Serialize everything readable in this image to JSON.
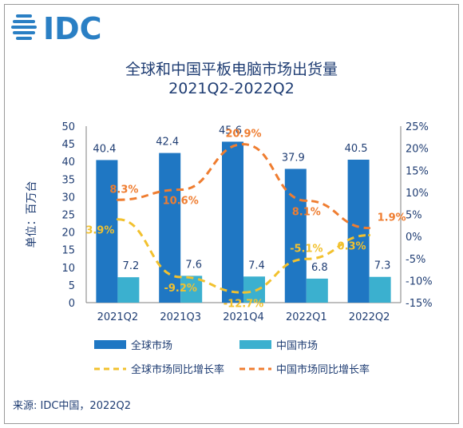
{
  "logo": {
    "text": "IDC",
    "color": "#2a7fc4"
  },
  "chart_data": {
    "type": "bar",
    "title": "全球和中国平板电脑市场出货量",
    "subtitle": "2021Q2-2022Q2",
    "ylabel": "单位：百万台",
    "categories": [
      "2021Q2",
      "2021Q3",
      "2021Q4",
      "2022Q1",
      "2022Q2"
    ],
    "ylim": [
      0,
      50
    ],
    "yticks": [
      "0",
      "5",
      "10",
      "15",
      "20",
      "25",
      "30",
      "35",
      "40",
      "45",
      "50"
    ],
    "y2lim": [
      -15,
      25
    ],
    "y2ticks": [
      "-15%",
      "-10%",
      "-5%",
      "0%",
      "5%",
      "10%",
      "15%",
      "20%",
      "25%"
    ],
    "series": [
      {
        "name": "全球市场",
        "kind": "bar",
        "color": "#1f77c3",
        "values": [
          40.4,
          42.4,
          45.6,
          37.9,
          40.5
        ],
        "labels": [
          "40.4",
          "42.4",
          "45.6",
          "37.9",
          "40.5"
        ]
      },
      {
        "name": "中国市场",
        "kind": "bar",
        "color": "#3bb0cf",
        "values": [
          7.2,
          7.6,
          7.4,
          6.8,
          7.3
        ],
        "labels": [
          "7.2",
          "7.6",
          "7.4",
          "6.8",
          "7.3"
        ]
      },
      {
        "name": "全球市场同比增长率",
        "kind": "line",
        "axis": "right",
        "style": "dashed",
        "color": "#f2c12e",
        "values": [
          3.9,
          -9.2,
          -12.7,
          -5.1,
          0.3
        ],
        "labels": [
          "3.9%",
          "-9.2%",
          "-12.7%",
          "-5.1%",
          "0.3%"
        ]
      },
      {
        "name": "中国市场同比增长率",
        "kind": "line",
        "axis": "right",
        "style": "dashed",
        "color": "#ef7d30",
        "values": [
          8.3,
          10.6,
          20.9,
          8.1,
          1.9
        ],
        "labels": [
          "8.3%",
          "10.6%",
          "20.9%",
          "8.1%",
          "1.9%"
        ]
      }
    ],
    "legend_position": "bottom",
    "source": "来源: IDC中国，2022Q2"
  }
}
